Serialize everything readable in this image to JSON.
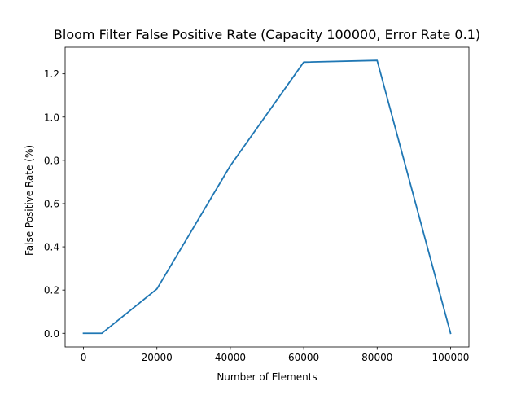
{
  "chart_data": {
    "type": "line",
    "title": "Bloom Filter False Positive Rate (Capacity 100000, Error Rate 0.1)",
    "xlabel": "Number of Elements",
    "ylabel": "False Positive Rate (%)",
    "xlim": [
      -5000,
      105000
    ],
    "ylim": [
      -0.063,
      1.323
    ],
    "xticks": [
      0,
      20000,
      40000,
      60000,
      80000,
      100000
    ],
    "xtick_labels": [
      "0",
      "20000",
      "40000",
      "60000",
      "80000",
      "100000"
    ],
    "yticks": [
      0.0,
      0.2,
      0.4,
      0.6,
      0.8,
      1.0,
      1.2
    ],
    "ytick_labels": [
      "0.0",
      "0.2",
      "0.4",
      "0.6",
      "0.8",
      "1.0",
      "1.2"
    ],
    "grid": false,
    "legend": "none",
    "series": [
      {
        "color": "#1f77b4",
        "x": [
          0,
          5000,
          20000,
          40000,
          60000,
          80000,
          100000
        ],
        "y": [
          0.0,
          0.0,
          0.205,
          0.775,
          1.254,
          1.262,
          0.0
        ]
      }
    ]
  }
}
